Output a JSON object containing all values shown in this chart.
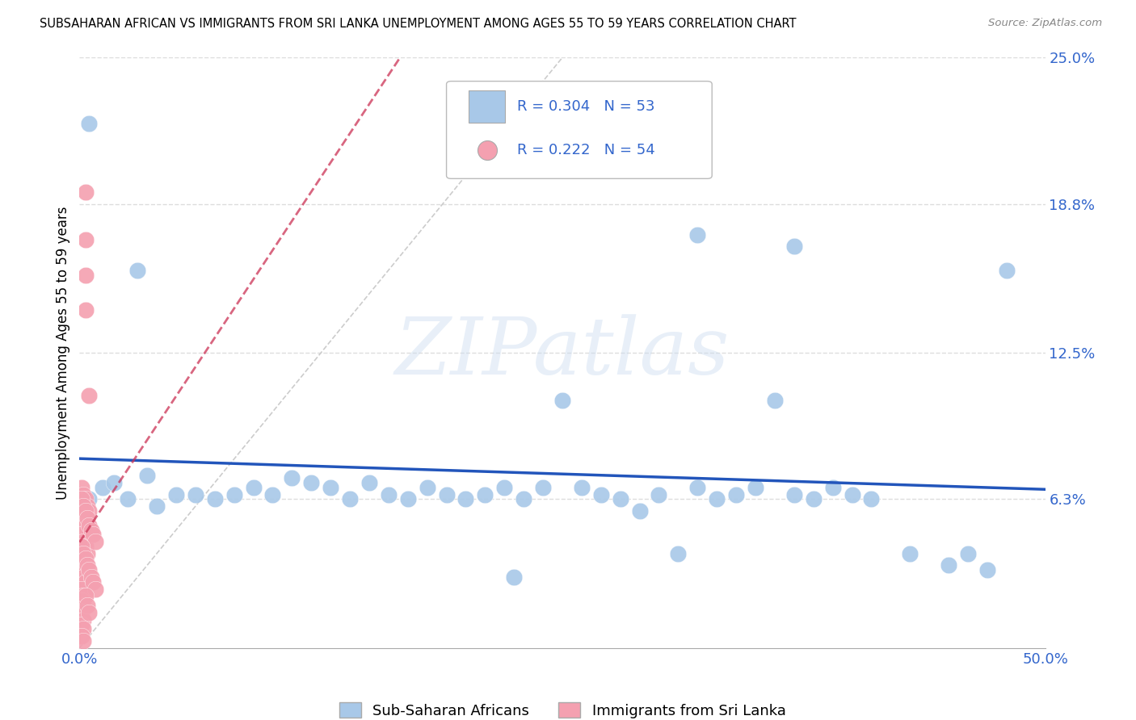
{
  "title": "SUBSAHARAN AFRICAN VS IMMIGRANTS FROM SRI LANKA UNEMPLOYMENT AMONG AGES 55 TO 59 YEARS CORRELATION CHART",
  "source": "Source: ZipAtlas.com",
  "ylabel": "Unemployment Among Ages 55 to 59 years",
  "xlim": [
    0.0,
    0.5
  ],
  "ylim": [
    0.0,
    0.25
  ],
  "ytick_positions": [
    0.0,
    0.063,
    0.125,
    0.188,
    0.25
  ],
  "ytick_labels": [
    "",
    "6.3%",
    "12.5%",
    "18.8%",
    "25.0%"
  ],
  "xtick_positions": [
    0.0,
    0.1,
    0.2,
    0.3,
    0.4,
    0.5
  ],
  "xtick_labels": [
    "0.0%",
    "",
    "",
    "",
    "",
    "50.0%"
  ],
  "legend_label1": "Sub-Saharan Africans",
  "legend_label2": "Immigrants from Sri Lanka",
  "R1": 0.304,
  "N1": 53,
  "R2": 0.222,
  "N2": 54,
  "color_blue": "#a8c8e8",
  "color_pink": "#f4a0b0",
  "trendline_blue": "#2255bb",
  "trendline_pink": "#cc3355",
  "diagonal_color": "#cccccc",
  "watermark": "ZIPatlas",
  "blue_points": [
    [
      0.005,
      0.222
    ],
    [
      0.03,
      0.16
    ],
    [
      0.32,
      0.175
    ],
    [
      0.48,
      0.16
    ],
    [
      0.37,
      0.17
    ],
    [
      0.005,
      0.063
    ],
    [
      0.012,
      0.068
    ],
    [
      0.018,
      0.07
    ],
    [
      0.025,
      0.063
    ],
    [
      0.035,
      0.073
    ],
    [
      0.04,
      0.06
    ],
    [
      0.05,
      0.065
    ],
    [
      0.06,
      0.065
    ],
    [
      0.07,
      0.063
    ],
    [
      0.08,
      0.065
    ],
    [
      0.09,
      0.068
    ],
    [
      0.1,
      0.065
    ],
    [
      0.11,
      0.072
    ],
    [
      0.12,
      0.07
    ],
    [
      0.13,
      0.068
    ],
    [
      0.14,
      0.063
    ],
    [
      0.15,
      0.07
    ],
    [
      0.16,
      0.065
    ],
    [
      0.17,
      0.063
    ],
    [
      0.18,
      0.068
    ],
    [
      0.19,
      0.065
    ],
    [
      0.2,
      0.063
    ],
    [
      0.21,
      0.065
    ],
    [
      0.22,
      0.068
    ],
    [
      0.225,
      0.03
    ],
    [
      0.23,
      0.063
    ],
    [
      0.24,
      0.068
    ],
    [
      0.25,
      0.105
    ],
    [
      0.26,
      0.068
    ],
    [
      0.27,
      0.065
    ],
    [
      0.28,
      0.063
    ],
    [
      0.29,
      0.058
    ],
    [
      0.3,
      0.065
    ],
    [
      0.31,
      0.04
    ],
    [
      0.32,
      0.068
    ],
    [
      0.33,
      0.063
    ],
    [
      0.34,
      0.065
    ],
    [
      0.35,
      0.068
    ],
    [
      0.36,
      0.105
    ],
    [
      0.37,
      0.065
    ],
    [
      0.38,
      0.063
    ],
    [
      0.39,
      0.068
    ],
    [
      0.4,
      0.065
    ],
    [
      0.41,
      0.063
    ],
    [
      0.43,
      0.04
    ],
    [
      0.45,
      0.035
    ],
    [
      0.46,
      0.04
    ],
    [
      0.47,
      0.033
    ]
  ],
  "pink_points": [
    [
      0.003,
      0.193
    ],
    [
      0.003,
      0.173
    ],
    [
      0.003,
      0.158
    ],
    [
      0.003,
      0.143
    ],
    [
      0.005,
      0.107
    ],
    [
      0.001,
      0.068
    ],
    [
      0.002,
      0.065
    ],
    [
      0.003,
      0.063
    ],
    [
      0.004,
      0.06
    ],
    [
      0.005,
      0.058
    ],
    [
      0.001,
      0.058
    ],
    [
      0.002,
      0.055
    ],
    [
      0.003,
      0.052
    ],
    [
      0.004,
      0.05
    ],
    [
      0.005,
      0.048
    ],
    [
      0.001,
      0.048
    ],
    [
      0.002,
      0.045
    ],
    [
      0.003,
      0.043
    ],
    [
      0.004,
      0.04
    ],
    [
      0.001,
      0.04
    ],
    [
      0.002,
      0.038
    ],
    [
      0.003,
      0.035
    ],
    [
      0.001,
      0.033
    ],
    [
      0.002,
      0.03
    ],
    [
      0.003,
      0.028
    ],
    [
      0.001,
      0.025
    ],
    [
      0.002,
      0.022
    ],
    [
      0.001,
      0.02
    ],
    [
      0.002,
      0.018
    ],
    [
      0.001,
      0.015
    ],
    [
      0.002,
      0.012
    ],
    [
      0.001,
      0.01
    ],
    [
      0.002,
      0.008
    ],
    [
      0.001,
      0.005
    ],
    [
      0.002,
      0.003
    ],
    [
      0.001,
      0.063
    ],
    [
      0.002,
      0.06
    ],
    [
      0.003,
      0.058
    ],
    [
      0.004,
      0.055
    ],
    [
      0.005,
      0.052
    ],
    [
      0.006,
      0.05
    ],
    [
      0.007,
      0.048
    ],
    [
      0.008,
      0.045
    ],
    [
      0.001,
      0.043
    ],
    [
      0.002,
      0.04
    ],
    [
      0.003,
      0.038
    ],
    [
      0.004,
      0.035
    ],
    [
      0.005,
      0.033
    ],
    [
      0.006,
      0.03
    ],
    [
      0.007,
      0.028
    ],
    [
      0.008,
      0.025
    ],
    [
      0.003,
      0.022
    ],
    [
      0.004,
      0.018
    ],
    [
      0.005,
      0.015
    ]
  ]
}
